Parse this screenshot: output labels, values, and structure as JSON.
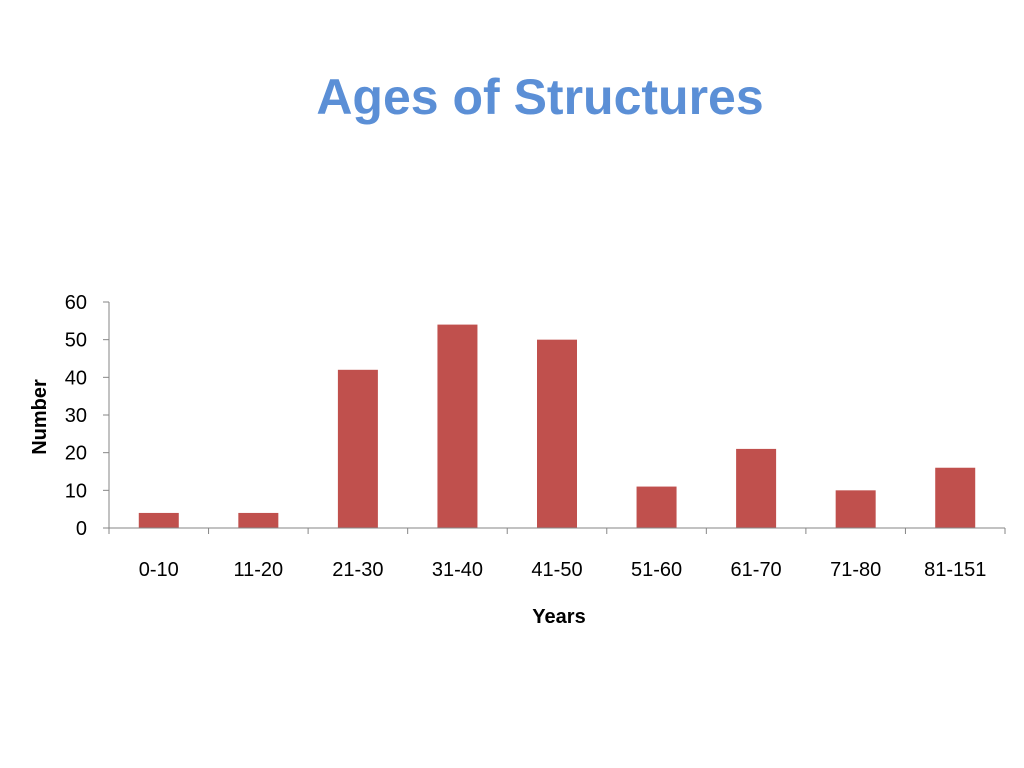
{
  "slide": {
    "title": "Ages of Structures"
  },
  "chart_data": {
    "type": "bar",
    "categories": [
      "0-10",
      "11-20",
      "21-30",
      "31-40",
      "41-50",
      "51-60",
      "61-70",
      "71-80",
      "81-151"
    ],
    "values": [
      4,
      4,
      42,
      54,
      50,
      11,
      21,
      10,
      16
    ],
    "xlabel": "Years",
    "ylabel": "Number",
    "ylim": [
      0,
      60
    ],
    "yticks": [
      0,
      10,
      20,
      30,
      40,
      50,
      60
    ],
    "grid": false,
    "legend": "none",
    "bar_color": "#C0504D",
    "axis_color": "#868686"
  }
}
